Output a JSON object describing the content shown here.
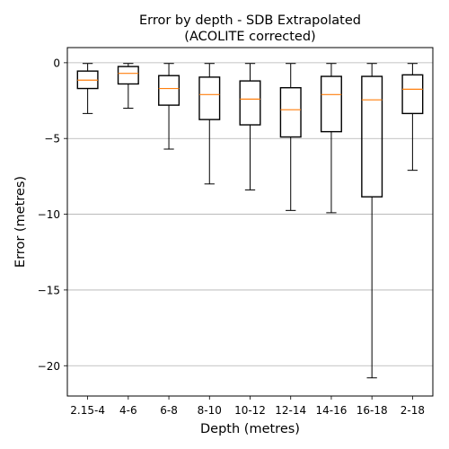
{
  "chart_data": {
    "type": "box",
    "title": "Error by depth - SDB Extrapolated",
    "subtitle": "(ACOLITE corrected)",
    "xlabel": "Depth (metres)",
    "ylabel": "Error (metres)",
    "ylim": [
      -22.0,
      1.0
    ],
    "yticks": [
      0,
      -5,
      -10,
      -15,
      -20
    ],
    "ytick_labels": [
      "0",
      "−5",
      "−10",
      "−15",
      "−20"
    ],
    "grid": "horizontal",
    "colors": {
      "box": "#000000",
      "median": "#ff7f0e",
      "grid": "#b0b0b0"
    },
    "categories": [
      "2.15-4",
      "4-6",
      "6-8",
      "8-10",
      "10-12",
      "12-14",
      "14-16",
      "16-18",
      "2-18"
    ],
    "boxes": [
      {
        "whislo": -3.35,
        "q1": -1.7,
        "med": -1.15,
        "q3": -0.55,
        "whishi": -0.05
      },
      {
        "whislo": -3.0,
        "q1": -1.4,
        "med": -0.7,
        "q3": -0.25,
        "whishi": -0.05
      },
      {
        "whislo": -5.7,
        "q1": -2.8,
        "med": -1.7,
        "q3": -0.85,
        "whishi": -0.05
      },
      {
        "whislo": -8.0,
        "q1": -3.75,
        "med": -2.1,
        "q3": -0.95,
        "whishi": -0.05
      },
      {
        "whislo": -8.4,
        "q1": -4.1,
        "med": -2.4,
        "q3": -1.2,
        "whishi": -0.05
      },
      {
        "whislo": -9.75,
        "q1": -4.9,
        "med": -3.1,
        "q3": -1.65,
        "whishi": -0.05
      },
      {
        "whislo": -9.9,
        "q1": -4.55,
        "med": -2.1,
        "q3": -0.9,
        "whishi": -0.05
      },
      {
        "whislo": -20.8,
        "q1": -8.85,
        "med": -2.45,
        "q3": -0.9,
        "whishi": -0.05
      },
      {
        "whislo": -7.1,
        "q1": -3.35,
        "med": -1.75,
        "q3": -0.8,
        "whishi": -0.05
      }
    ]
  }
}
